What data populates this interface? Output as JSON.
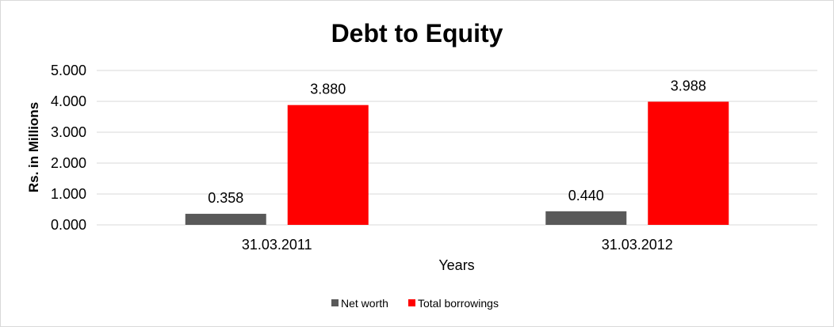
{
  "chart_data": {
    "type": "bar",
    "title": "Debt to Equity",
    "xlabel": "Years",
    "ylabel": "Rs. in Millions",
    "categories": [
      "31.03.2011",
      "31.03.2012"
    ],
    "series": [
      {
        "name": "Net worth",
        "values": [
          0.358,
          0.44
        ],
        "labels": [
          "0.358",
          "0.440"
        ],
        "color": "#595959"
      },
      {
        "name": "Total borrowings",
        "values": [
          3.88,
          3.988
        ],
        "labels": [
          "3.880",
          "3.988"
        ],
        "color": "#ff0000"
      }
    ],
    "ylim": [
      0,
      5
    ],
    "yticks": [
      "0.000",
      "1.000",
      "2.000",
      "3.000",
      "4.000",
      "5.000"
    ],
    "grid": true,
    "legend": "bottom"
  }
}
